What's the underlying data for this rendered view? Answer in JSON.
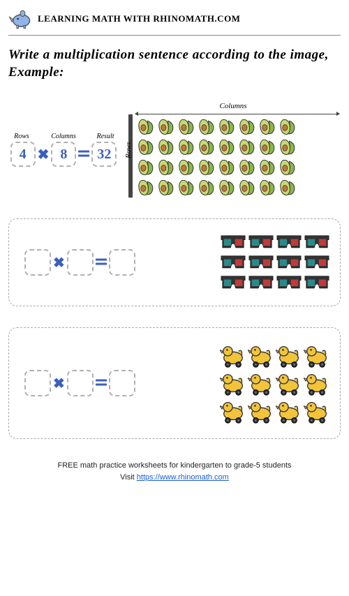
{
  "header": {
    "title": "LEARNING MATH WITH RHINOMATH.COM",
    "logo_colors": {
      "body": "#8fb4e8",
      "outline": "#4a4a4a",
      "horn": "#d4d4d4"
    }
  },
  "instructions": "Write a multiplication sentence according to the image, Example:",
  "labels": {
    "rows": "Rows",
    "columns": "Columns",
    "result": "Result"
  },
  "example": {
    "rows": 4,
    "cols": 8,
    "result": 32,
    "item": "avocado",
    "item_colors": {
      "light": "#c8d96f",
      "dark": "#8bb84a",
      "pit": "#c9743a",
      "outline": "#3a3a3a"
    },
    "box_text_color": "#3b5fc0",
    "op_color": "#3b5fc0",
    "cell_size": 28
  },
  "problems": [
    {
      "rows": 3,
      "cols": 4,
      "item": "3d-glasses",
      "item_colors": {
        "frame": "#333",
        "lens_left": "#2a8a8a",
        "lens_right": "#c03a3a"
      },
      "cell_size": 38
    },
    {
      "rows": 3,
      "cols": 4,
      "item": "duck-cart",
      "item_colors": {
        "body": "#f2c43a",
        "outline": "#3a3a3a",
        "wheel": "#333",
        "beak": "#e8912a"
      },
      "cell_size": 38
    }
  ],
  "footer": {
    "line1": "FREE math practice worksheets for kindergarten to grade-5 students",
    "line2_pre": "Visit ",
    "link_text": "https://www.rhinomath.com",
    "link_href": "https://www.rhinomath.com"
  },
  "style": {
    "background": "#ffffff",
    "border_dash_color": "#aaaaaa",
    "box_dash_color": "#b0b0b0",
    "header_font_size": 13,
    "instructions_font_size": 19,
    "eq_label_font_size": 10,
    "box_font_size": 20,
    "footer_font_size": 11
  }
}
